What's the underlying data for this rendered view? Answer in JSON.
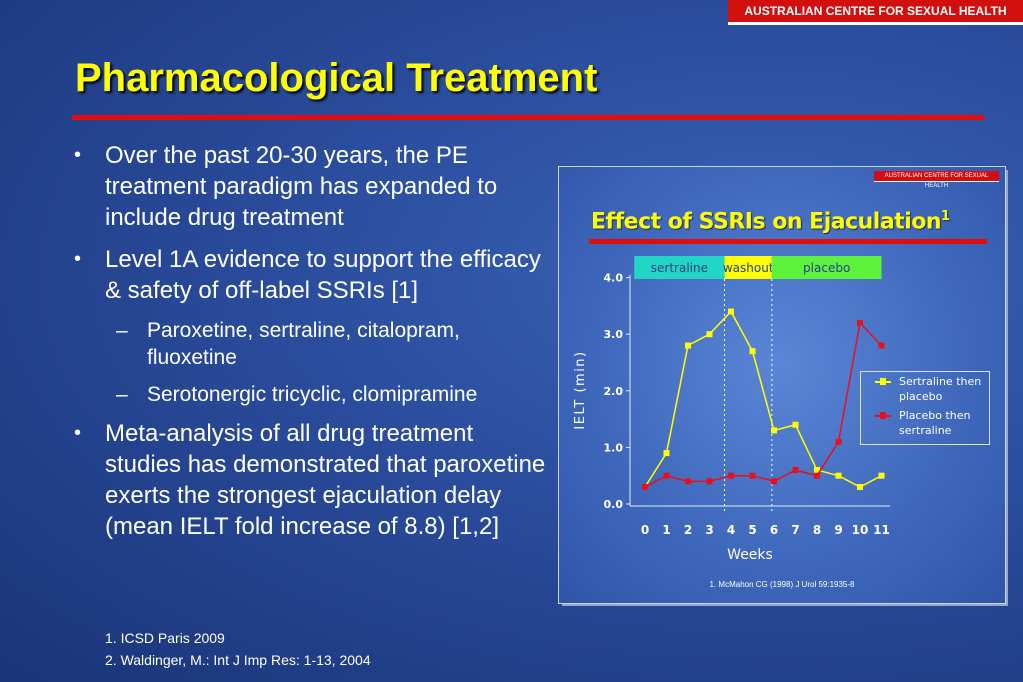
{
  "header_badge": "AUSTRALIAN CENTRE FOR SEXUAL HEALTH",
  "title": "Pharmacological Treatment",
  "bullets": [
    "Over the past 20-30 years, the PE treatment paradigm has expanded to include drug treatment",
    "Level 1A evidence to support the efficacy & safety of off-label SSRIs [1]",
    "Meta-analysis of all drug treatment studies has demonstrated that paroxetine exerts the strongest ejaculation delay (mean IELT fold increase of 8.8) [1,2]"
  ],
  "sub_bullets": [
    "Paroxetine, sertraline, citalopram, fluoxetine",
    "Serotonergic tricyclic, clomipramine"
  ],
  "references": [
    "1. ICSD Paris 2009",
    "2. Waldinger, M.: Int J Imp Res: 1-13, 2004"
  ],
  "colors": {
    "title": "#ffff00",
    "accent_red": "#e20e0e",
    "sertraline_then_placebo": "#ffff00",
    "placebo_then_sertraline": "#e8101e",
    "band_sertraline": "#21d6c4",
    "band_washout": "#ffff00",
    "band_placebo": "#5df23c"
  },
  "chart": {
    "badge": "AUSTRALIAN CENTRE FOR SEXUAL HEALTH",
    "title": "Effect of SSRIs on Ejaculation",
    "title_sup": "1",
    "citation": "1. McMahon CG (1998) J Urol 59:1935-8",
    "legend": [
      {
        "label": "Sertraline then placebo",
        "color": "#ffff00"
      },
      {
        "label": "Placebo then sertraline",
        "color": "#e8101e"
      }
    ]
  },
  "chart_data": {
    "type": "line",
    "title": "Effect of SSRIs on Ejaculation",
    "xlabel": "Weeks",
    "ylabel": "IELT (min)",
    "x": [
      0,
      1,
      2,
      3,
      4,
      5,
      6,
      7,
      8,
      9,
      10,
      11
    ],
    "x_ticks": [
      "0",
      "1",
      "2",
      "3",
      "4",
      "5",
      "6",
      "7",
      "8",
      "9",
      "10",
      "11"
    ],
    "y_ticks": [
      "0.0",
      "1.0",
      "2.0",
      "3.0",
      "4.0"
    ],
    "ylim": [
      0,
      4
    ],
    "grid": false,
    "legend_position": "right",
    "series": [
      {
        "name": "Sertraline then placebo",
        "color": "#ffff00",
        "values": [
          0.3,
          0.9,
          2.8,
          3.0,
          3.4,
          2.7,
          1.3,
          1.4,
          0.6,
          0.5,
          0.3,
          0.5
        ]
      },
      {
        "name": "Placebo then sertraline",
        "color": "#e8101e",
        "values": [
          0.3,
          0.5,
          0.4,
          0.4,
          0.5,
          0.5,
          0.4,
          0.6,
          0.5,
          1.1,
          3.2,
          2.8
        ]
      }
    ],
    "phases": [
      {
        "label": "sertraline",
        "from": -0.5,
        "to": 3.7,
        "color": "#21d6c4"
      },
      {
        "label": "washout",
        "from": 3.7,
        "to": 5.9,
        "color": "#ffff00"
      },
      {
        "label": "placebo",
        "from": 5.9,
        "to": 11.0,
        "color": "#5df23c"
      }
    ],
    "phase_dividers": [
      3.7,
      5.9
    ]
  }
}
